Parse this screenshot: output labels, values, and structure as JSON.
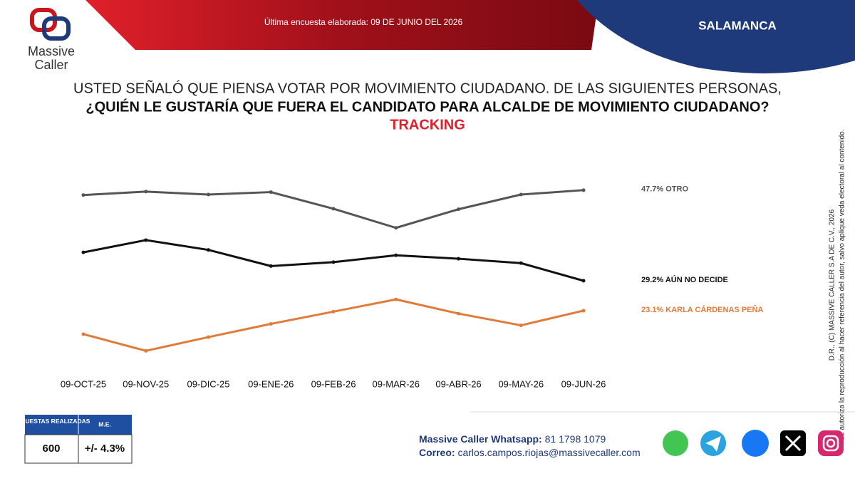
{
  "header": {
    "logo_line1": "Massive",
    "logo_line2": "Caller",
    "survey_date": "Última encuesta elaborada: 09 DE JUNIO DEL 2026",
    "location": "SALAMANCA"
  },
  "chart_data": {
    "type": "line",
    "title_line1": "USTED SEÑALÓ QUE PIENSA VOTAR POR MOVIMIENTO CIUDADANO. DE LAS SIGUIENTES PERSONAS,",
    "title_line2": "¿QUIÉN LE GUSTARÍA QUE FUERA EL CANDIDATO PARA ALCALDE DE MOVIMIENTO CIUDADANO?",
    "subtitle": "TRACKING",
    "categories": [
      "09-OCT-25",
      "09-NOV-25",
      "09-DIC-25",
      "09-ENE-26",
      "09-FEB-26",
      "09-MAR-26",
      "09-ABR-26",
      "09-MAY-26",
      "09-JUN-26"
    ],
    "ylim": [
      10,
      50
    ],
    "series": [
      {
        "name": "OTRO",
        "color": "#555555",
        "end_label": "47.7% OTRO",
        "values": [
          46.7,
          47.4,
          46.8,
          47.3,
          43.9,
          40.0,
          43.8,
          46.8,
          47.7
        ]
      },
      {
        "name": "AÚN NO DECIDE",
        "color": "#111111",
        "end_label": "29.2% AÚN NO DECIDE",
        "values": [
          35.0,
          37.5,
          35.5,
          32.2,
          33.0,
          34.4,
          33.7,
          32.8,
          29.2
        ]
      },
      {
        "name": "KARLA CÁRDENAS PEÑA",
        "color": "#e07b39",
        "end_label": "23.1% KARLA CÁRDENAS PEÑA",
        "values": [
          18.3,
          14.9,
          17.7,
          20.4,
          22.9,
          25.4,
          22.5,
          20.1,
          23.1
        ]
      }
    ]
  },
  "footer": {
    "table_header1": "ENCUESTAS REALIZADAS",
    "table_header2": "M.E.",
    "sample_size": "600",
    "margin_error": "+/- 4.3%",
    "whatsapp_label": "Massive Caller Whatsapp:",
    "whatsapp_number": "81 1798 1079",
    "email_label": "Correo:",
    "email": "carlos.campos.riojas@massivecaller.com",
    "copyright_line1": "D.R., (C) MASSIVE CALLER S.A DE C.V., 2026",
    "copyright_line2": "Se autoriza la reproducción al hacer referencia del autor, salvo aplique veda electoral al contenido."
  }
}
